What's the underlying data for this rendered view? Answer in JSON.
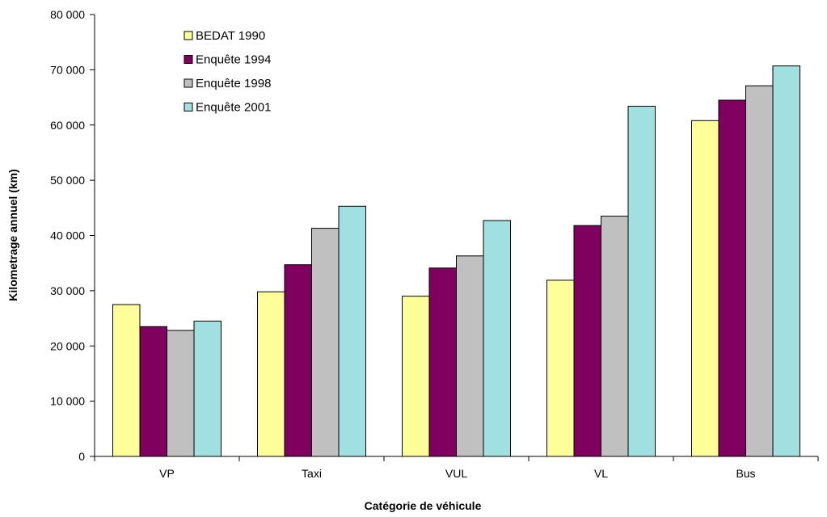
{
  "chart_data": {
    "type": "bar",
    "title": "",
    "xlabel": "Catégorie de véhicule",
    "ylabel": "Kilometrage annuel (km)",
    "ylim": [
      0,
      80000
    ],
    "y_ticks": [
      "0",
      "10 000",
      "20 000",
      "30 000",
      "40 000",
      "50 000",
      "60 000",
      "70 000",
      "80 000"
    ],
    "categories": [
      "VP",
      "Taxi",
      "VUL",
      "VL",
      "Bus"
    ],
    "series": [
      {
        "name": "BEDAT 1990",
        "color": "#FFFF99",
        "values": [
          27500,
          29800,
          29000,
          31900,
          60800
        ]
      },
      {
        "name": "Enquête 1994",
        "color": "#800060",
        "values": [
          23500,
          34700,
          34100,
          41800,
          64500
        ]
      },
      {
        "name": "Enquête 1998",
        "color": "#C0C0C0",
        "values": [
          22800,
          41300,
          36300,
          43500,
          67100
        ]
      },
      {
        "name": "Enquête 2001",
        "color": "#A0E0E0",
        "values": [
          24500,
          45300,
          42700,
          63400,
          70700
        ]
      }
    ],
    "grid": false,
    "legend_position": "top-left"
  }
}
